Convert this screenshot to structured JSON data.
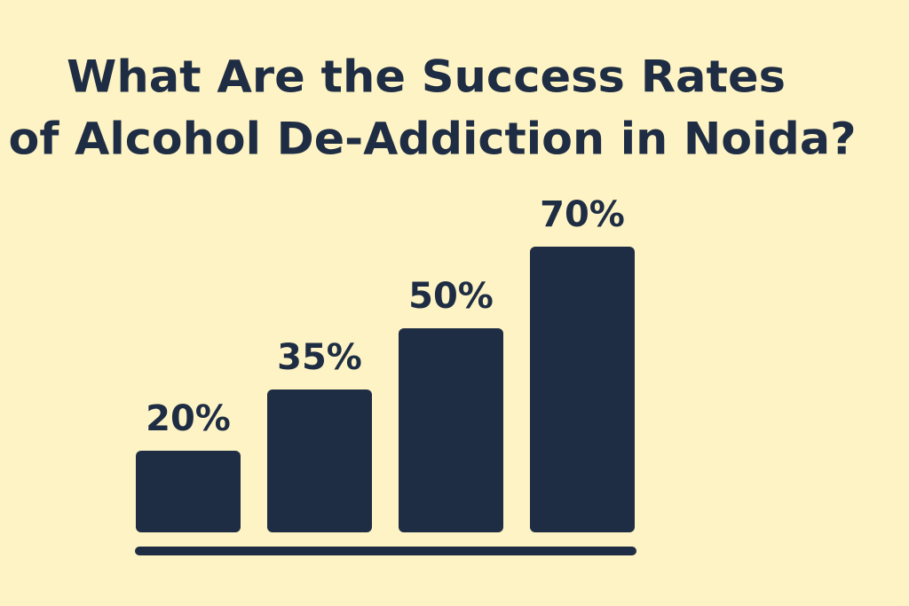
{
  "chart_data": {
    "type": "bar",
    "title": [
      "What Are the Success Rates",
      "of Alcohol De-Addiction in Noida?"
    ],
    "categories": [
      null,
      null,
      null,
      null
    ],
    "values": [
      20,
      35,
      50,
      70
    ],
    "value_labels": [
      "20%",
      "35%",
      "50%",
      "70%"
    ],
    "color": "#1f2d44"
  }
}
